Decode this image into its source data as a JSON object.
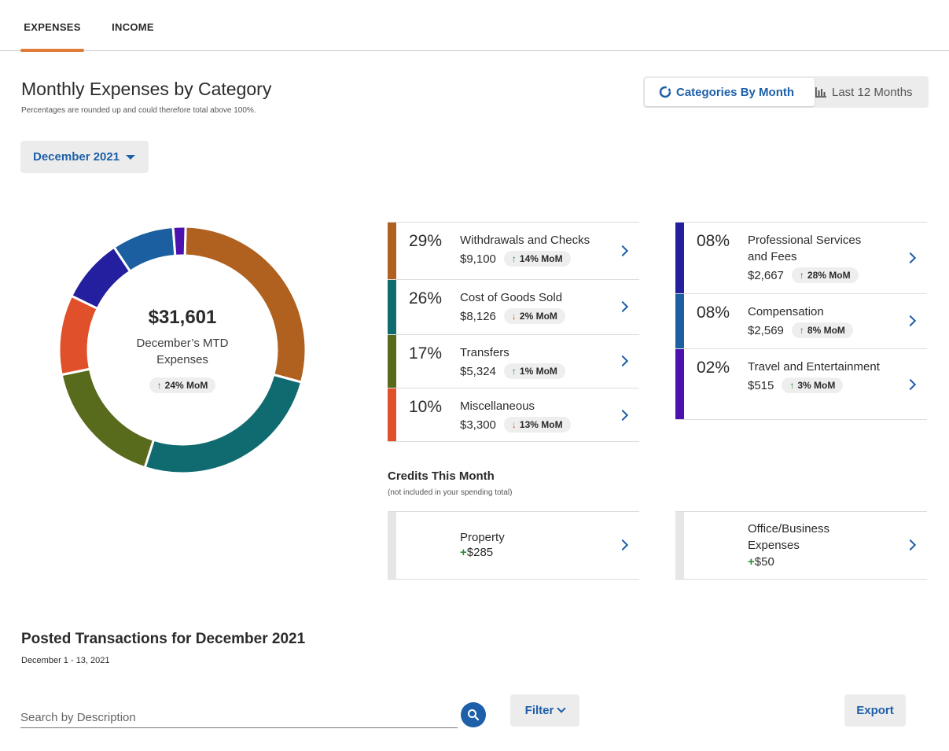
{
  "tabs": [
    {
      "label": "EXPENSES",
      "active": true
    },
    {
      "label": "INCOME",
      "active": false
    }
  ],
  "header": {
    "title": "Monthly Expenses by Category",
    "subtitle": "Percentages are rounded up and could therefore total above 100%."
  },
  "view_toggle": {
    "categories_label": "Categories By Month",
    "categories_icon": "donut-icon",
    "months_label": "Last 12 Months",
    "months_icon": "bar-chart-icon"
  },
  "month_select": {
    "value": "December 2021"
  },
  "summary": {
    "total": "$31,601",
    "label": "December's MTD Expenses",
    "mom": "24% MoM",
    "mom_direction": "up"
  },
  "chart_data": {
    "type": "pie",
    "categories": [
      "Withdrawals and Checks",
      "Cost of Goods Sold",
      "Transfers",
      "Miscellaneous",
      "Professional Services and Fees",
      "Compensation",
      "Travel and Entertainment"
    ],
    "values": [
      9100,
      8126,
      5324,
      3300,
      2667,
      2569,
      515
    ],
    "colors": [
      "#b0601f",
      "#0f6b70",
      "#586a1b",
      "#e0502a",
      "#241f9e",
      "#1b5fa0",
      "#4b12b0"
    ]
  },
  "categories_left": [
    {
      "pct": "29%",
      "name": "Withdrawals and Checks",
      "amount": "$9,100",
      "mom": "14% MoM",
      "direction": "up",
      "color": "#b0601f"
    },
    {
      "pct": "26%",
      "name": "Cost of Goods Sold",
      "amount": "$8,126",
      "mom": "2% MoM",
      "direction": "down",
      "color": "#0f6b70"
    },
    {
      "pct": "17%",
      "name": "Transfers",
      "amount": "$5,324",
      "mom": "1% MoM",
      "direction": "up",
      "color": "#586a1b"
    },
    {
      "pct": "10%",
      "name": "Miscellaneous",
      "amount": "$3,300",
      "mom": "13% MoM",
      "direction": "down",
      "color": "#e0502a"
    }
  ],
  "categories_right": [
    {
      "pct": "08%",
      "name": "Professional Services and Fees",
      "amount": "$2,667",
      "mom": "28% MoM",
      "direction": "up",
      "color": "#241f9e"
    },
    {
      "pct": "08%",
      "name": "Compensation",
      "amount": "$2,569",
      "mom": "8% MoM",
      "direction": "up",
      "color": "#1b5fa0"
    },
    {
      "pct": "02%",
      "name": "Travel and Entertainment",
      "amount": "$515",
      "mom": "3% MoM",
      "direction": "up",
      "color": "#4b12b0"
    }
  ],
  "credits": {
    "title": "Credits This Month",
    "subtitle": "(not included in your spending total)",
    "items": [
      {
        "name": "Property",
        "amount": "$285"
      },
      {
        "name": "Office/Business Expenses",
        "amount": "$50"
      }
    ]
  },
  "transactions": {
    "title": "Posted Transactions for December 2021",
    "date_range": "December 1 - 13, 2021",
    "search_placeholder": "Search by Description",
    "filter_label": "Filter",
    "export_label": "Export"
  }
}
